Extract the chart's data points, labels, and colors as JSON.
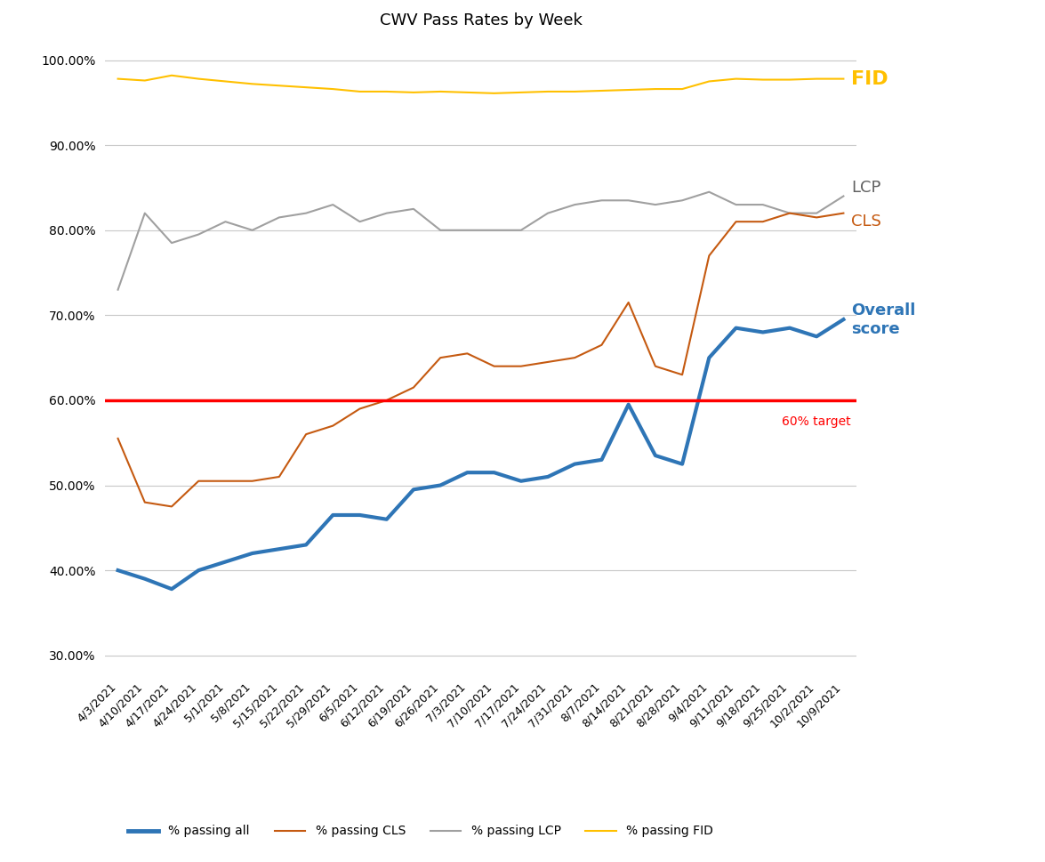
{
  "title": "CWV Pass Rates by Week",
  "dates": [
    "4/3/2021",
    "4/10/2021",
    "4/17/2021",
    "4/24/2021",
    "5/1/2021",
    "5/8/2021",
    "5/15/2021",
    "5/22/2021",
    "5/29/2021",
    "6/5/2021",
    "6/12/2021",
    "6/19/2021",
    "6/26/2021",
    "7/3/2021",
    "7/10/2021",
    "7/17/2021",
    "7/24/2021",
    "7/31/2021",
    "8/7/2021",
    "8/14/2021",
    "8/21/2021",
    "8/28/2021",
    "9/4/2021",
    "9/11/2021",
    "9/18/2021",
    "9/25/2021",
    "10/2/2021",
    "10/9/2021"
  ],
  "passing_all": [
    0.4,
    0.39,
    0.378,
    0.4,
    0.41,
    0.42,
    0.425,
    0.43,
    0.465,
    0.465,
    0.46,
    0.495,
    0.5,
    0.515,
    0.515,
    0.505,
    0.51,
    0.525,
    0.53,
    0.595,
    0.535,
    0.525,
    0.65,
    0.685,
    0.68,
    0.685,
    0.675,
    0.695
  ],
  "passing_cls": [
    0.555,
    0.48,
    0.475,
    0.505,
    0.505,
    0.505,
    0.51,
    0.56,
    0.57,
    0.59,
    0.6,
    0.615,
    0.65,
    0.655,
    0.64,
    0.64,
    0.645,
    0.65,
    0.665,
    0.715,
    0.64,
    0.63,
    0.77,
    0.81,
    0.81,
    0.82,
    0.815,
    0.82
  ],
  "passing_lcp": [
    0.73,
    0.82,
    0.785,
    0.795,
    0.81,
    0.8,
    0.815,
    0.82,
    0.83,
    0.81,
    0.82,
    0.825,
    0.8,
    0.8,
    0.8,
    0.8,
    0.82,
    0.83,
    0.835,
    0.835,
    0.83,
    0.835,
    0.845,
    0.83,
    0.83,
    0.82,
    0.82,
    0.84
  ],
  "passing_fid": [
    0.978,
    0.976,
    0.982,
    0.978,
    0.975,
    0.972,
    0.97,
    0.968,
    0.966,
    0.963,
    0.963,
    0.962,
    0.963,
    0.962,
    0.961,
    0.962,
    0.963,
    0.963,
    0.964,
    0.965,
    0.966,
    0.966,
    0.975,
    0.978,
    0.977,
    0.977,
    0.978,
    0.978
  ],
  "target_line": 0.6,
  "color_all": "#2E75B6",
  "color_cls": "#C55A11",
  "color_lcp": "#A0A0A0",
  "color_fid": "#FFC000",
  "color_target": "#FF0000",
  "label_all": "% passing all",
  "label_cls": "% passing CLS",
  "label_lcp": "% passing LCP",
  "label_fid": "% passing FID",
  "label_target": "60% target",
  "annotation_fid": "FID",
  "annotation_lcp": "LCP",
  "annotation_cls": "CLS",
  "annotation_overall": "Overall\nscore",
  "ylim_min": 0.28,
  "ylim_max": 1.02,
  "yticks": [
    0.3,
    0.4,
    0.5,
    0.6,
    0.7,
    0.8,
    0.9,
    1.0
  ],
  "background_color": "#FFFFFF",
  "title_fontsize": 13,
  "legend_fontsize": 10,
  "annotation_fontsize_fid": 16,
  "annotation_fontsize": 13
}
